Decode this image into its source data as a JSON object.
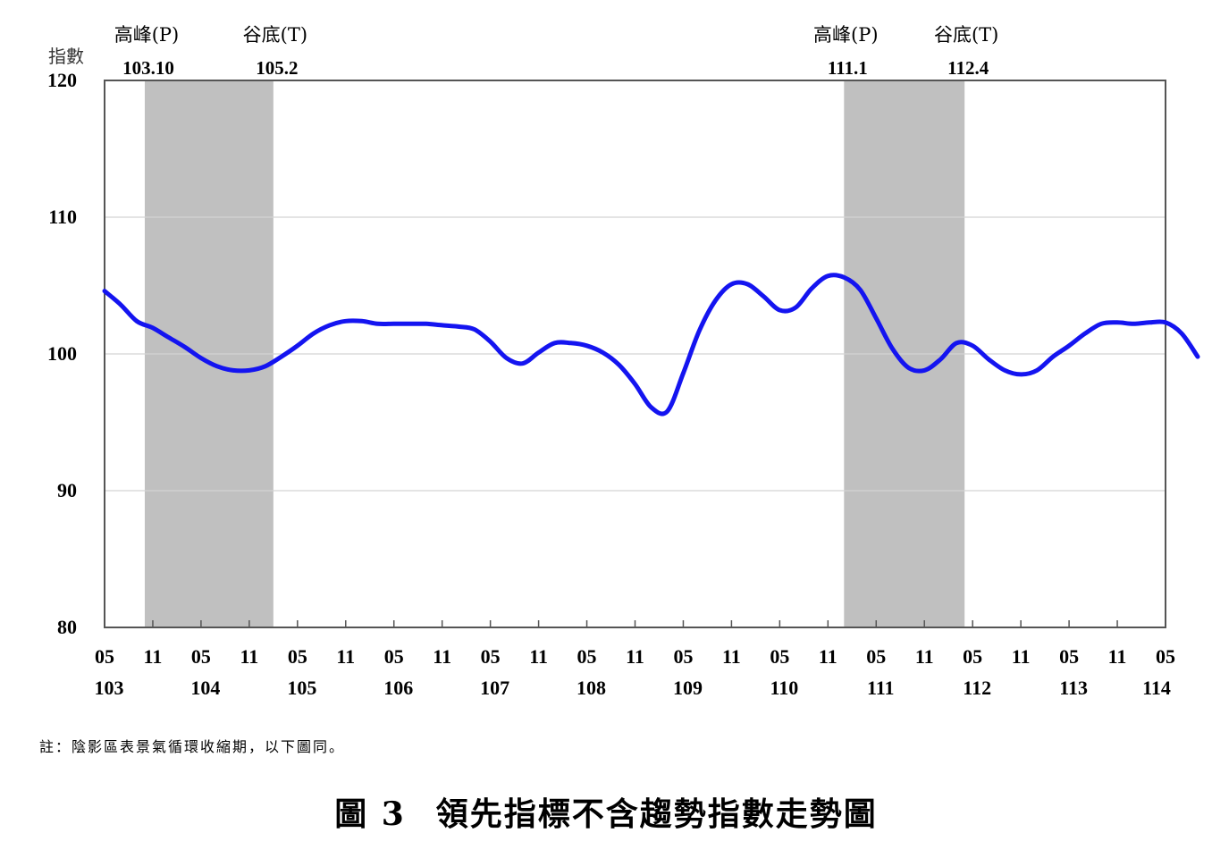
{
  "chart_data": {
    "type": "line",
    "ylabel": "指數",
    "ylim": [
      80,
      120
    ],
    "yticks": [
      80,
      90,
      100,
      110,
      120
    ],
    "grid": true,
    "series_color": "#1414f0",
    "shade_color": "#c0c0c0",
    "x_tick_months": [
      "05",
      "11",
      "05",
      "11",
      "05",
      "11",
      "05",
      "11",
      "05",
      "11",
      "05",
      "11",
      "05",
      "11",
      "05",
      "11",
      "05",
      "11",
      "05",
      "11",
      "05",
      "11",
      "05"
    ],
    "x_tick_years": [
      "103",
      "104",
      "105",
      "106",
      "107",
      "108",
      "109",
      "110",
      "111",
      "112",
      "113",
      "114"
    ],
    "annotations": [
      {
        "label": "高峰(P)",
        "date": "103.10"
      },
      {
        "label": "谷底(T)",
        "date": "105.2"
      },
      {
        "label": "高峰(P)",
        "date": "111.1"
      },
      {
        "label": "谷底(T)",
        "date": "112.4"
      }
    ],
    "shaded_periods": [
      {
        "start": "103.10",
        "end": "105.2"
      },
      {
        "start": "111.1",
        "end": "112.4"
      }
    ],
    "series": [
      {
        "values": [
          [
            "103.5",
            104.6
          ],
          [
            "103.7",
            103.6
          ],
          [
            "103.9",
            102.4
          ],
          [
            "103.11",
            101.9
          ],
          [
            "104.1",
            101.2
          ],
          [
            "104.3",
            100.5
          ],
          [
            "104.5",
            99.7
          ],
          [
            "104.7",
            99.1
          ],
          [
            "104.9",
            98.8
          ],
          [
            "104.11",
            98.8
          ],
          [
            "105.1",
            99.1
          ],
          [
            "105.3",
            99.8
          ],
          [
            "105.5",
            100.6
          ],
          [
            "105.7",
            101.5
          ],
          [
            "105.9",
            102.1
          ],
          [
            "105.11",
            102.4
          ],
          [
            "106.1",
            102.4
          ],
          [
            "106.3",
            102.2
          ],
          [
            "106.5",
            102.2
          ],
          [
            "106.7",
            102.2
          ],
          [
            "106.9",
            102.2
          ],
          [
            "106.11",
            102.1
          ],
          [
            "107.1",
            102.0
          ],
          [
            "107.3",
            101.8
          ],
          [
            "107.5",
            100.9
          ],
          [
            "107.7",
            99.7
          ],
          [
            "107.9",
            99.3
          ],
          [
            "107.11",
            100.1
          ],
          [
            "108.1",
            100.8
          ],
          [
            "108.3",
            100.8
          ],
          [
            "108.5",
            100.6
          ],
          [
            "108.7",
            100.1
          ],
          [
            "108.9",
            99.2
          ],
          [
            "108.11",
            97.8
          ],
          [
            "109.1",
            96.1
          ],
          [
            "109.3",
            95.8
          ],
          [
            "109.5",
            98.6
          ],
          [
            "109.7",
            101.7
          ],
          [
            "109.9",
            103.9
          ],
          [
            "109.11",
            105.1
          ],
          [
            "110.1",
            105.1
          ],
          [
            "110.3",
            104.2
          ],
          [
            "110.5",
            103.2
          ],
          [
            "110.7",
            103.4
          ],
          [
            "110.9",
            104.8
          ],
          [
            "110.11",
            105.7
          ],
          [
            "111.1",
            105.6
          ],
          [
            "111.3",
            104.7
          ],
          [
            "111.5",
            102.6
          ],
          [
            "111.7",
            100.4
          ],
          [
            "111.9",
            99.0
          ],
          [
            "111.11",
            98.8
          ],
          [
            "112.1",
            99.6
          ],
          [
            "112.3",
            100.8
          ],
          [
            "112.5",
            100.6
          ],
          [
            "112.7",
            99.6
          ],
          [
            "112.9",
            98.8
          ],
          [
            "112.11",
            98.5
          ],
          [
            "113.1",
            98.8
          ],
          [
            "113.3",
            99.8
          ],
          [
            "113.5",
            100.6
          ],
          [
            "113.7",
            101.5
          ],
          [
            "113.9",
            102.2
          ],
          [
            "113.11",
            102.3
          ],
          [
            "114.1",
            102.2
          ],
          [
            "114.3",
            102.3
          ],
          [
            "114.5",
            102.3
          ],
          [
            "114.7",
            101.5
          ],
          [
            "114.9",
            99.8
          ]
        ]
      }
    ]
  },
  "note": "註：陰影區表景氣循環收縮期，以下圖同。",
  "caption": {
    "number": "圖 3",
    "title": "領先指標不含趨勢指數走勢圖"
  }
}
